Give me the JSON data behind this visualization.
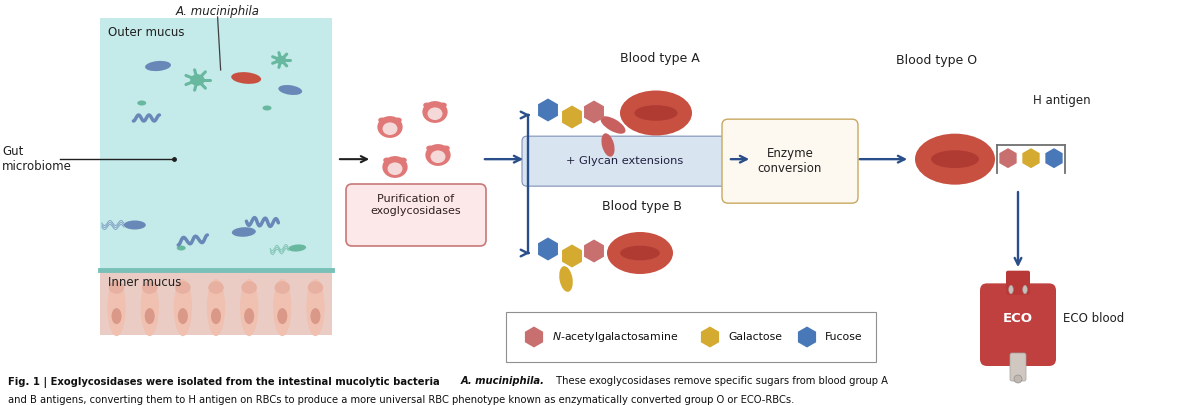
{
  "background_color": "#ffffff",
  "gut_box_color": "#c5eaea",
  "inner_mucus_color": "#eaccc4",
  "villi_color": "#f0c0b0",
  "villi_cap_color": "#e8b0a0",
  "villi_nucleus_color": "#d08878",
  "teal_line_color": "#78c0b8",
  "bacteria_teal": "#68b8a0",
  "bacteria_blue": "#6888b8",
  "bacteria_red": "#c85040",
  "enzyme_color": "#e07878",
  "enzyme_inner": "#f5d8d8",
  "blood_cell_color": "#c85040",
  "blood_cell_shadow": "#9a2828",
  "nag_color": "#c87070",
  "galactose_color": "#d4aa30",
  "fucose_color": "#4878b8",
  "arrow_color": "#2a4e8a",
  "gut_arrow_color": "#202020",
  "glycan_box_color": "#d8e4f0",
  "glycan_box_edge": "#8090b8",
  "purif_box_color": "#fce8e8",
  "purif_box_edge": "#c87878",
  "enzyme_box_color": "#fdf8f0",
  "enzyme_box_edge": "#c8a860",
  "legend_edge_color": "#909090",
  "label_color": "#202020",
  "caption_color": "#101010",
  "fig_caption_bold": "Fig. 1 | Exoglycosidases were isolated from the intestinal mucolytic bacteria ",
  "fig_caption_italic": "A. muciniphila.",
  "fig_caption_normal": " These exoglycosidases remove specific sugars from blood group A",
  "fig_caption_line2": "and B antigens, converting them to H antigen on RBCs to produce a more universal RBC phenotype known as enzymatically converted group O or ECO-RBCs."
}
